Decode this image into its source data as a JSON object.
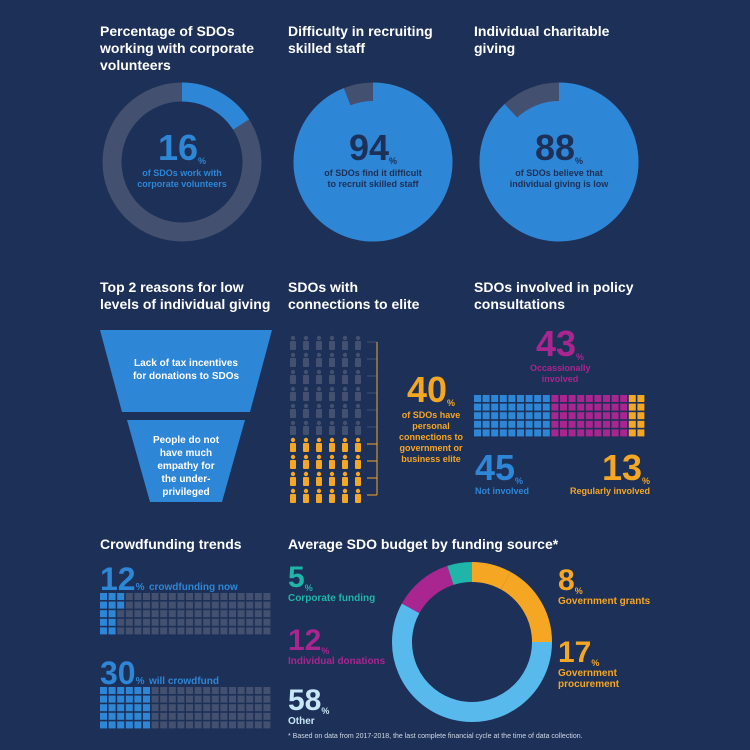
{
  "colors": {
    "bg": "#1d3057",
    "blue": "#2e86d6",
    "grey": "#44506f",
    "magenta": "#a9258f",
    "orange": "#f5a623",
    "light": "#58b9ec",
    "teal": "#1fb5a8"
  },
  "donut1": {
    "title": "Percentage of SDOs working with corporate volunteers",
    "value": "16",
    "pct": "%",
    "caption": "of SDOs work with corporate volunteers",
    "fraction": 0.16
  },
  "donut2": {
    "title": "Difficulty in recruiting skilled staff",
    "value": "94",
    "pct": "%",
    "caption": "of SDOs find it difficult to recruit skilled staff",
    "fraction": 0.94
  },
  "donut3": {
    "title": "Individual charitable giving",
    "value": "88",
    "pct": "%",
    "caption": "of SDOs believe that individual giving is low",
    "fraction": 0.88
  },
  "reasons": {
    "title": "Top 2 reasons for low levels of individual giving",
    "items": [
      "Lack of tax incentives for donations to SDOs",
      "People do not have much empathy for the under-privileged"
    ]
  },
  "elite": {
    "title": "SDOs with connections to elite",
    "value": "40",
    "pct": "%",
    "caption": "of SDOs have personal connections to government or business elite",
    "fraction": 0.4
  },
  "policy": {
    "title": "SDOs involved in policy consultations",
    "occasionally": {
      "value": "43",
      "pct": "%",
      "label": "Occassionally involved"
    },
    "not": {
      "value": "45",
      "pct": "%",
      "label": "Not involved"
    },
    "regularly": {
      "value": "13",
      "pct": "%",
      "label": "Regularly involved"
    }
  },
  "crowd": {
    "title": "Crowdfunding trends",
    "now": {
      "value": "12",
      "pct": "%",
      "label": "crowdfunding now",
      "fraction": 0.12
    },
    "will": {
      "value": "30",
      "pct": "%",
      "label": "will crowdfund",
      "fraction": 0.3
    }
  },
  "budget": {
    "title": "Average SDO budget by funding source*",
    "items": {
      "corporate": {
        "value": "5",
        "pct": "%",
        "label": "Corporate funding"
      },
      "individual": {
        "value": "12",
        "pct": "%",
        "label": "Individual donations"
      },
      "other": {
        "value": "58",
        "pct": "%",
        "label": "Other"
      },
      "grants": {
        "value": "8",
        "pct": "%",
        "label": "Government grants"
      },
      "procurement": {
        "value": "17",
        "pct": "%",
        "label": "Government procurement"
      }
    }
  },
  "chart_data": [
    {
      "type": "pie",
      "title": "Percentage of SDOs working with corporate volunteers",
      "labels": [
        "work with corporate volunteers",
        "others"
      ],
      "values": [
        16,
        84
      ]
    },
    {
      "type": "pie",
      "title": "Difficulty in recruiting skilled staff",
      "labels": [
        "find it difficult to recruit skilled staff",
        "others"
      ],
      "values": [
        94,
        6
      ]
    },
    {
      "type": "pie",
      "title": "Individual charitable giving",
      "labels": [
        "believe that individual giving is low",
        "others"
      ],
      "values": [
        88,
        12
      ]
    },
    {
      "type": "bar",
      "title": "SDOs with connections to elite",
      "categories": [
        "personal connections to government or business elite"
      ],
      "values": [
        40
      ]
    },
    {
      "type": "bar",
      "title": "SDOs involved in policy consultations",
      "categories": [
        "Not involved",
        "Occassionally involved",
        "Regularly involved"
      ],
      "values": [
        45,
        43,
        13
      ]
    },
    {
      "type": "bar",
      "title": "Crowdfunding trends",
      "categories": [
        "crowdfunding now",
        "will crowdfund"
      ],
      "values": [
        12,
        30
      ]
    },
    {
      "type": "pie",
      "title": "Average SDO budget by funding source*",
      "labels": [
        "Government grants",
        "Government procurement",
        "Other",
        "Individual donations",
        "Corporate funding"
      ],
      "values": [
        8,
        17,
        58,
        12,
        5
      ]
    }
  ],
  "footnote": "* Based on data from 2017-2018, the last complete financial cycle at the time of data collection."
}
